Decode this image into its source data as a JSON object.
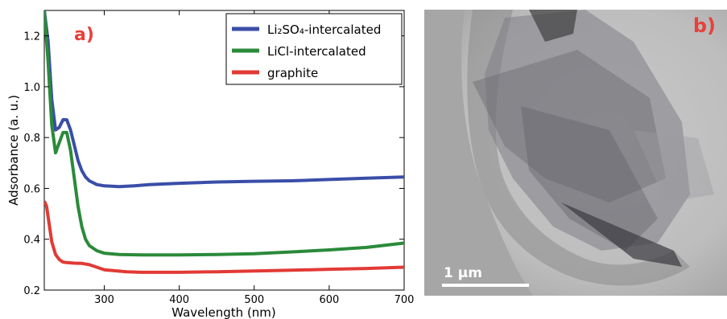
{
  "chart_data": {
    "type": "line",
    "panel_label": "a)",
    "xlabel": "Wavelength (nm)",
    "ylabel": "Adsorbance (a. u.)",
    "xlim": [
      220,
      700
    ],
    "ylim": [
      0.2,
      1.3
    ],
    "xticks": [
      300,
      400,
      500,
      600,
      700
    ],
    "yticks": [
      0.2,
      0.4,
      0.6,
      0.8,
      1.0,
      1.2
    ],
    "legend_position": "top-right",
    "series": [
      {
        "name": "Li₂SO₄-intercalated",
        "color": "#3a4ea8",
        "x": [
          220,
          225,
          230,
          235,
          240,
          245,
          250,
          255,
          260,
          265,
          270,
          275,
          280,
          290,
          300,
          320,
          340,
          360,
          400,
          450,
          500,
          550,
          600,
          650,
          700
        ],
        "y": [
          1.3,
          1.18,
          0.95,
          0.83,
          0.84,
          0.87,
          0.87,
          0.83,
          0.77,
          0.71,
          0.67,
          0.645,
          0.63,
          0.615,
          0.61,
          0.607,
          0.61,
          0.615,
          0.62,
          0.625,
          0.628,
          0.63,
          0.635,
          0.64,
          0.645
        ]
      },
      {
        "name": "LiCl-intercalated",
        "color": "#2a8a3a",
        "x": [
          220,
          225,
          230,
          235,
          240,
          245,
          250,
          255,
          260,
          265,
          270,
          275,
          280,
          290,
          300,
          320,
          350,
          400,
          450,
          500,
          550,
          600,
          650,
          700
        ],
        "y": [
          1.3,
          1.1,
          0.85,
          0.74,
          0.78,
          0.82,
          0.82,
          0.75,
          0.64,
          0.53,
          0.45,
          0.4,
          0.375,
          0.355,
          0.345,
          0.34,
          0.338,
          0.338,
          0.34,
          0.343,
          0.35,
          0.358,
          0.368,
          0.385
        ]
      },
      {
        "name": "graphite",
        "color": "#e23a35",
        "x": [
          220,
          223,
          226,
          230,
          235,
          240,
          245,
          250,
          260,
          270,
          280,
          300,
          330,
          350,
          400,
          450,
          500,
          550,
          600,
          650,
          700
        ],
        "y": [
          0.55,
          0.53,
          0.47,
          0.39,
          0.34,
          0.32,
          0.31,
          0.308,
          0.306,
          0.305,
          0.3,
          0.28,
          0.272,
          0.27,
          0.27,
          0.272,
          0.275,
          0.278,
          0.282,
          0.285,
          0.29
        ]
      }
    ]
  },
  "panel_b": {
    "label": "b)",
    "scale_bar_text": "1 μm"
  }
}
